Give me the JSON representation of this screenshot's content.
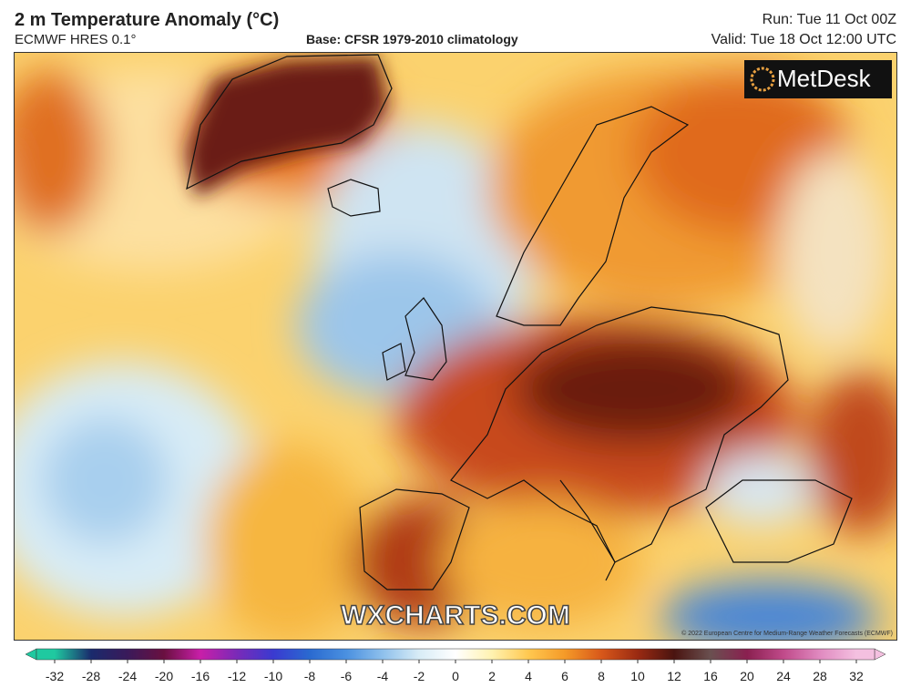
{
  "header": {
    "title": "2 m Temperature Anomaly (°C)",
    "model": "ECMWF HRES 0.1°",
    "base": "Base: CFSR 1979-2010 climatology",
    "run": "Run: Tue 11 Oct 00Z",
    "valid": "Valid: Tue 18 Oct 12:00 UTC"
  },
  "map": {
    "logo": "MetDesk",
    "watermark": "WXCHARTS.COM",
    "copyright": "© 2022 European Centre for Medium-Range Weather Forecasts (ECMWF)"
  },
  "colorbar": {
    "ticks": [
      -32,
      -28,
      -24,
      -20,
      -16,
      -12,
      -10,
      -8,
      -6,
      -4,
      -2,
      0,
      2,
      4,
      6,
      8,
      10,
      12,
      16,
      20,
      24,
      28,
      32
    ],
    "colors": [
      "#1fc9a0",
      "#1a2a6c",
      "#3a1a5a",
      "#6a1040",
      "#c81fa8",
      "#7a2ab8",
      "#3a3ad0",
      "#2a6ad0",
      "#4a90e0",
      "#8ec0ec",
      "#d8ecf6",
      "#ffffff",
      "#fff2b0",
      "#ffc850",
      "#f59a28",
      "#d8581a",
      "#9a2a12",
      "#4a1410",
      "#6a5050",
      "#8a2050",
      "#c04a8a",
      "#e08ac0",
      "#f4c0e0"
    ]
  }
}
